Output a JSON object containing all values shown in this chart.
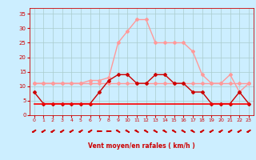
{
  "x": [
    0,
    1,
    2,
    3,
    4,
    5,
    6,
    7,
    8,
    9,
    10,
    11,
    12,
    13,
    14,
    15,
    16,
    17,
    18,
    19,
    20,
    21,
    22,
    23
  ],
  "vent_moyen": [
    8,
    4,
    4,
    4,
    4,
    4,
    4,
    8,
    12,
    14,
    14,
    11,
    11,
    14,
    14,
    11,
    11,
    8,
    8,
    4,
    4,
    4,
    8,
    4
  ],
  "rafales": [
    11,
    11,
    11,
    11,
    11,
    11,
    12,
    12,
    13,
    25,
    29,
    33,
    33,
    25,
    25,
    25,
    25,
    22,
    14,
    11,
    11,
    14,
    8,
    11
  ],
  "flat_low": [
    4,
    4,
    4,
    4,
    4,
    4,
    4,
    4,
    4,
    4,
    4,
    4,
    4,
    4,
    4,
    4,
    4,
    4,
    4,
    4,
    4,
    4,
    4,
    4
  ],
  "flat_mid": [
    11,
    11,
    11,
    11,
    11,
    11,
    11,
    11,
    11,
    11,
    11,
    11,
    11,
    11,
    11,
    11,
    11,
    11,
    11,
    11,
    11,
    11,
    11,
    11
  ],
  "color_dark_red": "#cc0000",
  "color_light_pink": "#ff9999",
  "color_flat_red": "#ff0000",
  "bg_color": "#cceeff",
  "grid_color": "#aacccc",
  "tick_color": "#cc0000",
  "label_color": "#cc0000",
  "xlabel": "Vent moyen/en rafales ( km/h )",
  "ylim": [
    0,
    37
  ],
  "xlim": [
    -0.5,
    23.5
  ],
  "yticks": [
    0,
    5,
    10,
    15,
    20,
    25,
    30,
    35
  ],
  "xticks": [
    0,
    1,
    2,
    3,
    4,
    5,
    6,
    7,
    8,
    9,
    10,
    11,
    12,
    13,
    14,
    15,
    16,
    17,
    18,
    19,
    20,
    21,
    22,
    23
  ],
  "wind_dirs": [
    225,
    225,
    225,
    225,
    225,
    225,
    225,
    270,
    270,
    315,
    315,
    315,
    315,
    315,
    315,
    315,
    315,
    315,
    225,
    225,
    225,
    225,
    225,
    225
  ]
}
